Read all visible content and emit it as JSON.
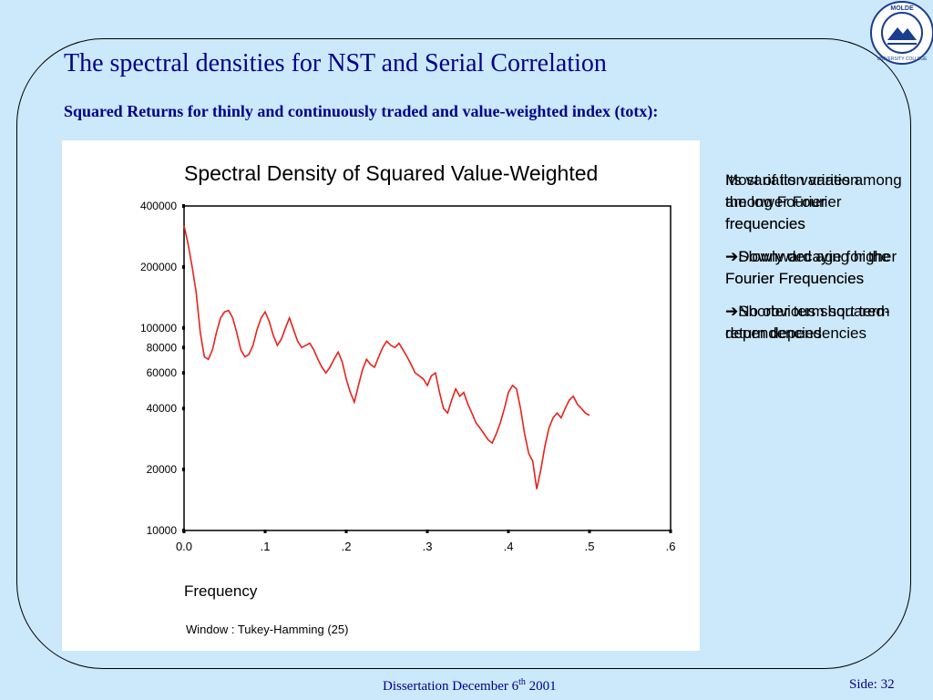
{
  "slide": {
    "title": "The spectral densities for NST and Serial Correlation",
    "subtitle": "Squared Returns for thinly and continuously traded and value-weighted index (totx):",
    "footer_text": "Dissertation December 6",
    "footer_sup": "th",
    "footer_year": " 2001",
    "page_label": "Side: 32"
  },
  "logo": {
    "top_text": "MOLDE",
    "ring_text": "UNIVERSITY COLLEGE"
  },
  "notes_layer_a": [
    "Its variation varies among the lower Fourier frequencies",
    "➔Slowly decaying higher Fourier Frequencies",
    "➔No obvious short term dependencies"
  ],
  "notes_layer_b": [
    "Most of its variation among Fourier frequencies",
    "➔Downward age for the Fourier Frequencies",
    "➔Shorter term squared-return dependencies"
  ],
  "chart_data": {
    "type": "line",
    "title": "Spectral Density of Squared Value-Weighted",
    "xlabel": "Frequency",
    "ylabel": "",
    "window_note": "Window : Tukey-Hamming (25)",
    "x_scale": "linear",
    "y_scale": "log",
    "xlim": [
      0.0,
      0.6
    ],
    "ylim": [
      10000,
      400000
    ],
    "x_ticks": [
      "0.0",
      ".1",
      ".2",
      ".3",
      ".4",
      ".5",
      ".6"
    ],
    "x_tick_values": [
      0.0,
      0.1,
      0.2,
      0.3,
      0.4,
      0.5,
      0.6
    ],
    "y_ticks": [
      "400000",
      "200000",
      "100000",
      "80000",
      "60000",
      "40000",
      "20000",
      "10000"
    ],
    "y_tick_values": [
      400000,
      200000,
      100000,
      80000,
      60000,
      40000,
      20000,
      10000
    ],
    "grid": false,
    "series": [
      {
        "color": "#e8221b",
        "x": [
          0.0,
          0.005,
          0.01,
          0.015,
          0.02,
          0.025,
          0.03,
          0.035,
          0.04,
          0.045,
          0.05,
          0.055,
          0.06,
          0.065,
          0.07,
          0.075,
          0.08,
          0.085,
          0.09,
          0.095,
          0.1,
          0.105,
          0.11,
          0.115,
          0.12,
          0.125,
          0.13,
          0.135,
          0.14,
          0.145,
          0.15,
          0.155,
          0.16,
          0.165,
          0.17,
          0.175,
          0.18,
          0.185,
          0.19,
          0.195,
          0.2,
          0.205,
          0.21,
          0.215,
          0.22,
          0.225,
          0.23,
          0.235,
          0.24,
          0.245,
          0.25,
          0.255,
          0.26,
          0.265,
          0.27,
          0.275,
          0.28,
          0.285,
          0.29,
          0.295,
          0.3,
          0.305,
          0.31,
          0.315,
          0.32,
          0.325,
          0.33,
          0.335,
          0.34,
          0.345,
          0.35,
          0.355,
          0.36,
          0.365,
          0.37,
          0.375,
          0.38,
          0.385,
          0.39,
          0.395,
          0.4,
          0.405,
          0.41,
          0.415,
          0.42,
          0.425,
          0.43,
          0.435,
          0.44,
          0.445,
          0.45,
          0.455,
          0.46,
          0.465,
          0.47,
          0.475,
          0.48,
          0.485,
          0.49,
          0.495,
          0.5
        ],
        "y": [
          320000,
          260000,
          200000,
          150000,
          95000,
          72000,
          70000,
          78000,
          95000,
          112000,
          120000,
          122000,
          112000,
          95000,
          78000,
          72000,
          74000,
          82000,
          98000,
          112000,
          120000,
          108000,
          92000,
          82000,
          88000,
          100000,
          112000,
          98000,
          86000,
          80000,
          82000,
          84000,
          78000,
          70000,
          64000,
          60000,
          64000,
          70000,
          76000,
          68000,
          56000,
          48000,
          43000,
          52000,
          62000,
          70000,
          66000,
          64000,
          72000,
          80000,
          86000,
          82000,
          80000,
          84000,
          78000,
          72000,
          66000,
          60000,
          58000,
          56000,
          52000,
          58000,
          60000,
          48000,
          40000,
          38000,
          44000,
          50000,
          46000,
          48000,
          42000,
          38000,
          34000,
          32000,
          30000,
          28000,
          27000,
          30000,
          34000,
          40000,
          48000,
          52000,
          50000,
          40000,
          30000,
          24000,
          22000,
          16000,
          20000,
          26000,
          32000,
          36000,
          38000,
          36000,
          40000,
          44000,
          46000,
          42000,
          40000,
          38000,
          37000
        ]
      }
    ]
  }
}
